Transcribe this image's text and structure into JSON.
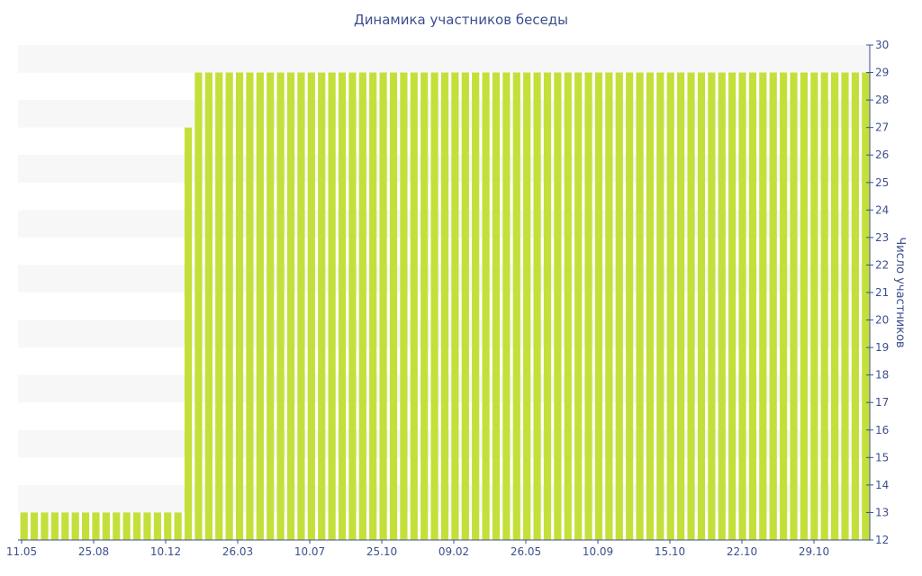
{
  "chart_data": {
    "type": "bar",
    "title": "Динамика участников беседы",
    "xlabel": "",
    "ylabel": "Число участников",
    "ylim": [
      12,
      30
    ],
    "y_ticks": [
      12,
      13,
      14,
      15,
      16,
      17,
      18,
      19,
      20,
      21,
      22,
      23,
      24,
      25,
      26,
      27,
      28,
      29,
      30
    ],
    "x_tick_labels": [
      "11.05",
      "25.08",
      "10.12",
      "26.03",
      "10.07",
      "25.10",
      "09.02",
      "26.05",
      "10.09",
      "15.10",
      "22.10",
      "29.10"
    ],
    "y_axis_position": "right",
    "grid": "horizontal bands",
    "bar_color": "#c3e03a",
    "axis_color": "#3c4f8c",
    "band_color": "#f7f7f7",
    "values": [
      13,
      13,
      13,
      13,
      13,
      13,
      13,
      13,
      13,
      13,
      13,
      13,
      13,
      13,
      13,
      13,
      27,
      29,
      29,
      29,
      29,
      29,
      29,
      29,
      29,
      29,
      29,
      29,
      29,
      29,
      29,
      29,
      29,
      29,
      29,
      29,
      29,
      29,
      29,
      29,
      29,
      29,
      29,
      29,
      29,
      29,
      29,
      29,
      29,
      29,
      29,
      29,
      29,
      29,
      29,
      29,
      29,
      29,
      29,
      29,
      29,
      29,
      29,
      29,
      29,
      29,
      29,
      29,
      29,
      29,
      29,
      29,
      29,
      29,
      29,
      29,
      29,
      29,
      29,
      29,
      29,
      29,
      29
    ]
  }
}
